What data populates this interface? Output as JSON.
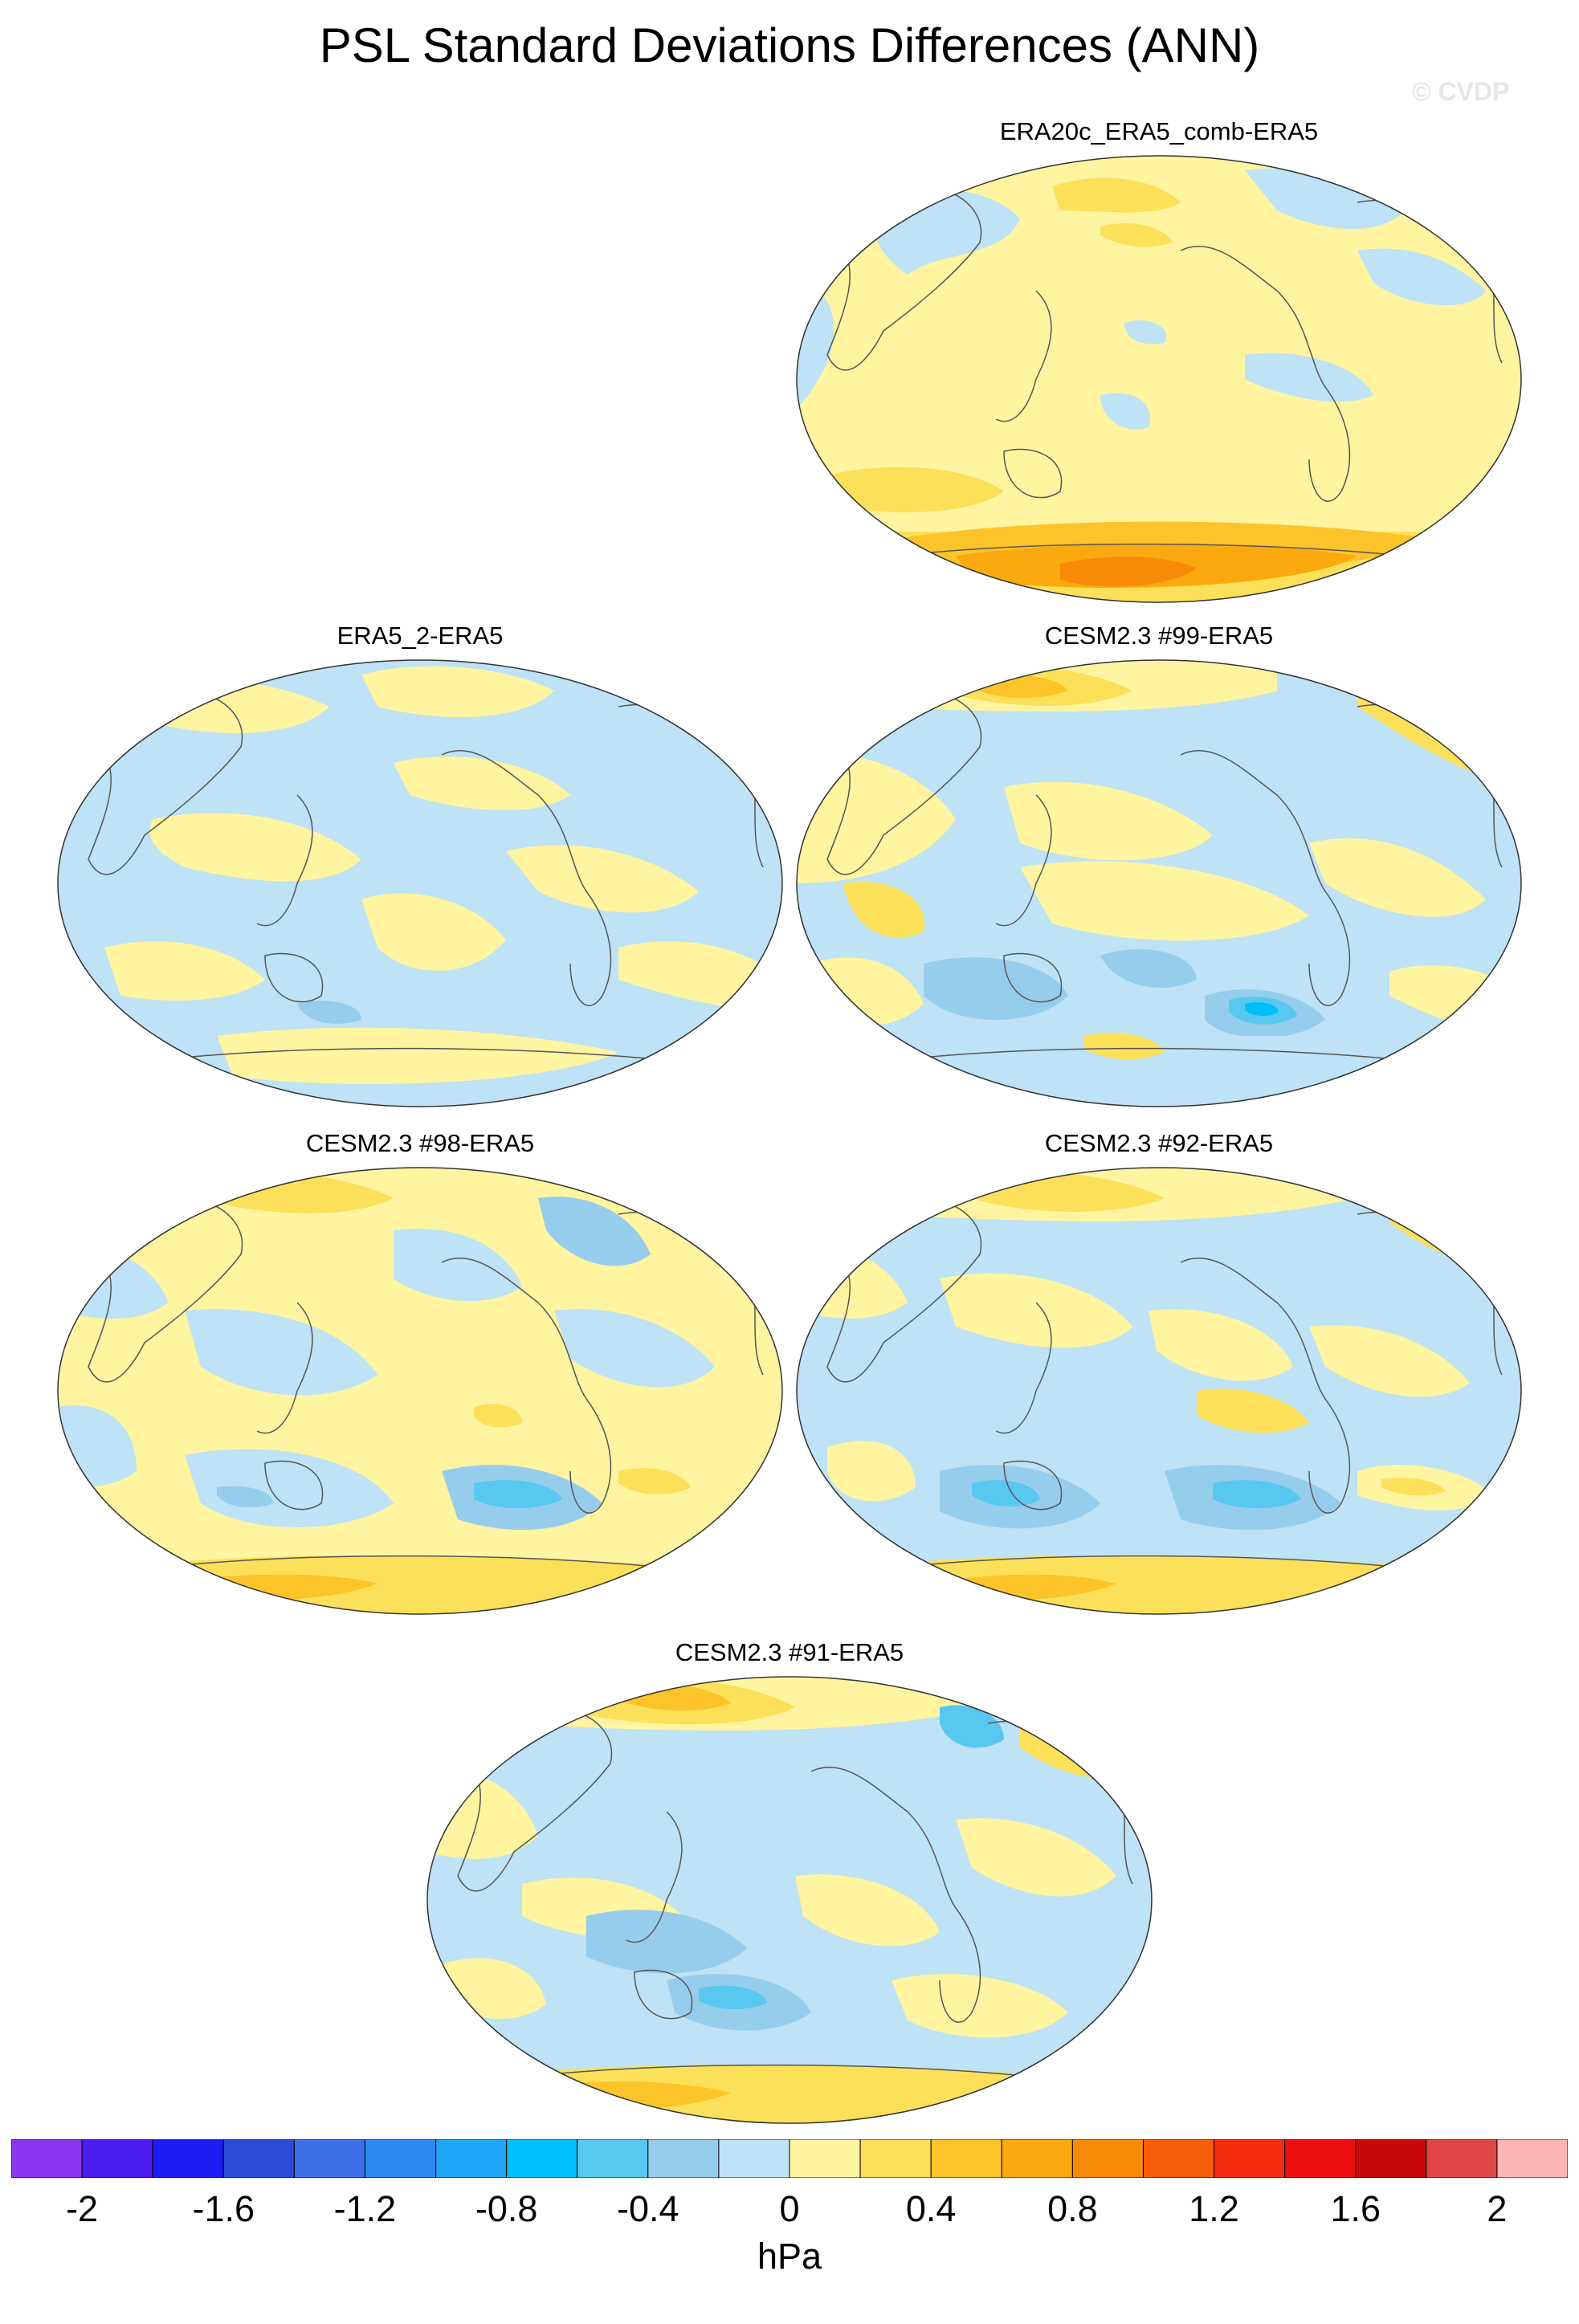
{
  "title": "PSL Standard Deviations Differences (ANN)",
  "copyright": "© CVDP",
  "panels": [
    {
      "title": "ERA20c_ERA5_comb-ERA5"
    },
    {
      "title": "ERA5_2-ERA5"
    },
    {
      "title": "CESM2.3 #99-ERA5"
    },
    {
      "title": "CESM2.3 #98-ERA5"
    },
    {
      "title": "CESM2.3 #92-ERA5"
    },
    {
      "title": "CESM2.3 #91-ERA5"
    }
  ],
  "colorbar": {
    "units": "hPa",
    "tick_labels": [
      "-2",
      "-1.6",
      "-1.2",
      "-0.8",
      "-0.4",
      "0",
      "0.4",
      "0.8",
      "1.2",
      "1.6",
      "2"
    ],
    "colors": [
      "#8c35f0",
      "#4b1bf0",
      "#1c1cf6",
      "#2c4bd6",
      "#3c70e6",
      "#2d8af5",
      "#1ea5f5",
      "#00c0fa",
      "#58c8f0",
      "#97cdec",
      "#bee2f6",
      "#fff4a0",
      "#fde05a",
      "#fcc428",
      "#fba90f",
      "#f98a07",
      "#f65e07",
      "#f42c10",
      "#ec0d0d",
      "#c80808",
      "#e04848",
      "#ffb4b4"
    ]
  },
  "map_colors": {
    "neutral_pos": "#fff4a0",
    "neutral_neg": "#bee2f6",
    "pos_mid": "#fde05a",
    "pos_strong": "#fcc428",
    "pos_stronger": "#fba90f",
    "pos_max": "#f65e07",
    "neg_mid": "#97cdec",
    "neg_strong": "#58c8f0",
    "neg_max": "#00c0fa",
    "coast": "#555555"
  }
}
